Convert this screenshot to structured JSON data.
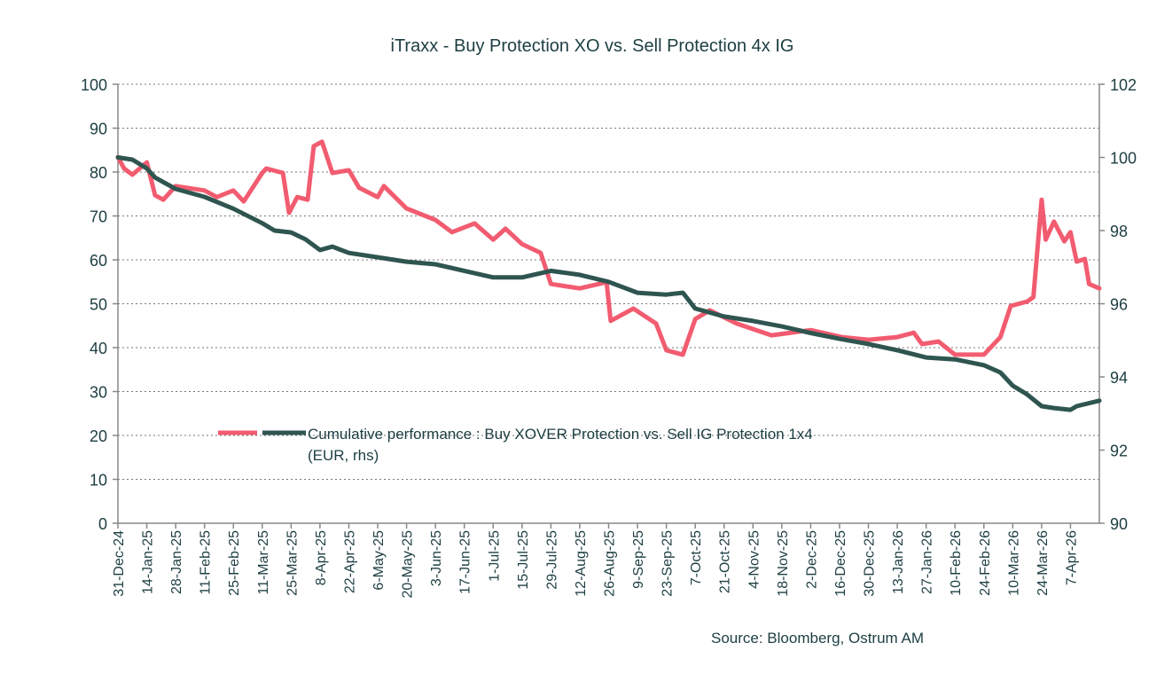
{
  "chart_data": {
    "type": "line",
    "title": "iTraxx  - Buy Protection XO vs. Sell Protection 4x IG",
    "source": "Source: Bloomberg, Ostrum AM",
    "x_range": [
      "2024-12-31",
      "2026-04-21"
    ],
    "x_tick_labels": [
      "31-Dec-24",
      "14-Jan-25",
      "28-Jan-25",
      "11-Feb-25",
      "25-Feb-25",
      "11-Mar-25",
      "25-Mar-25",
      "8-Apr-25",
      "22-Apr-25",
      "6-May-25",
      "20-May-25",
      "3-Jun-25",
      "17-Jun-25",
      "1-Jul-25",
      "15-Jul-25",
      "29-Jul-25",
      "12-Aug-25",
      "26-Aug-25",
      "9-Sep-25",
      "23-Sep-25",
      "7-Oct-25",
      "21-Oct-25",
      "4-Nov-25",
      "18-Nov-25",
      "2-Dec-25",
      "16-Dec-25",
      "30-Dec-25",
      "13-Jan-26",
      "27-Jan-26",
      "10-Feb-26",
      "24-Feb-26",
      "10-Mar-26",
      "24-Mar-26",
      "7-Apr-26"
    ],
    "y_left": {
      "range": [
        0,
        100
      ],
      "ticks": [
        "0",
        "10",
        "20",
        "30",
        "40",
        "50",
        "60",
        "70",
        "80",
        "90",
        "100"
      ]
    },
    "y_right": {
      "range": [
        90,
        102
      ],
      "ticks": [
        "90",
        "92",
        "94",
        "96",
        "98",
        "100",
        "102"
      ]
    },
    "grid": "horizontal dotted",
    "legend_placement": "lower-center",
    "legend_text_line1": "Cumulative performance : Buy XOVER Protection vs. Sell IG Protection  1x4",
    "legend_text_line2": "(EUR, rhs)",
    "series": [
      {
        "axis": "left",
        "color": "#f25c70",
        "x": [
          "2024-12-31",
          "2025-01-03",
          "2025-01-07",
          "2025-01-14",
          "2025-01-18",
          "2025-01-22",
          "2025-01-28",
          "2025-02-11",
          "2025-02-17",
          "2025-02-25",
          "2025-03-02",
          "2025-03-11",
          "2025-03-13",
          "2025-03-21",
          "2025-03-24",
          "2025-03-28",
          "2025-04-02",
          "2025-04-05",
          "2025-04-09",
          "2025-04-14",
          "2025-04-22",
          "2025-04-27",
          "2025-05-06",
          "2025-05-09",
          "2025-05-20",
          "2025-06-03",
          "2025-06-11",
          "2025-06-22",
          "2025-07-01",
          "2025-07-07",
          "2025-07-15",
          "2025-07-24",
          "2025-07-29",
          "2025-08-12",
          "2025-08-25",
          "2025-08-27",
          "2025-09-07",
          "2025-09-18",
          "2025-09-23",
          "2025-10-01",
          "2025-10-07",
          "2025-10-14",
          "2025-10-27",
          "2025-11-13",
          "2025-12-02",
          "2025-12-17",
          "2025-12-30",
          "2026-01-13",
          "2026-01-21",
          "2026-01-25",
          "2026-02-02",
          "2026-02-10",
          "2026-02-24",
          "2026-03-04",
          "2026-03-09",
          "2026-03-17",
          "2026-03-20",
          "2026-03-24",
          "2026-03-26",
          "2026-03-30",
          "2026-04-04",
          "2026-04-07",
          "2026-04-10",
          "2026-04-14",
          "2026-04-16",
          "2026-04-21"
        ],
        "values": [
          83.4,
          80.8,
          79.4,
          82.2,
          74.7,
          73.7,
          76.8,
          75.8,
          74.3,
          75.8,
          73.3,
          79.8,
          80.8,
          79.8,
          70.7,
          74.3,
          73.7,
          85.9,
          86.9,
          79.8,
          80.4,
          76.4,
          74.3,
          76.8,
          71.7,
          69.1,
          66.3,
          68.3,
          64.6,
          67.1,
          63.6,
          61.6,
          54.5,
          53.5,
          54.9,
          46.1,
          48.9,
          45.5,
          39.4,
          38.4,
          46.5,
          48.5,
          45.5,
          42.8,
          44.0,
          42.4,
          41.8,
          42.4,
          43.4,
          40.8,
          41.4,
          38.4,
          38.4,
          42.4,
          49.5,
          50.5,
          51.5,
          73.7,
          64.6,
          68.7,
          64.2,
          66.3,
          59.6,
          60.2,
          54.5,
          53.5
        ]
      },
      {
        "name": "Cumulative performance : Buy XOVER Protection vs. Sell IG Protection  1x4 (EUR, rhs)",
        "axis": "right",
        "color": "#2f5550",
        "x": [
          "2024-12-31",
          "2025-01-07",
          "2025-01-14",
          "2025-01-18",
          "2025-01-28",
          "2025-02-11",
          "2025-02-25",
          "2025-03-11",
          "2025-03-17",
          "2025-03-25",
          "2025-04-01",
          "2025-04-08",
          "2025-04-14",
          "2025-04-22",
          "2025-05-06",
          "2025-05-20",
          "2025-06-03",
          "2025-06-17",
          "2025-07-01",
          "2025-07-15",
          "2025-07-29",
          "2025-08-12",
          "2025-08-26",
          "2025-09-09",
          "2025-09-23",
          "2025-10-01",
          "2025-10-07",
          "2025-10-21",
          "2025-11-04",
          "2025-11-18",
          "2025-12-02",
          "2025-12-16",
          "2025-12-30",
          "2026-01-13",
          "2026-01-27",
          "2026-02-10",
          "2026-02-24",
          "2026-03-04",
          "2026-03-10",
          "2026-03-17",
          "2026-03-24",
          "2026-03-30",
          "2026-04-07",
          "2026-04-10",
          "2026-04-21"
        ],
        "values": [
          100.0,
          99.94,
          99.7,
          99.45,
          99.14,
          98.92,
          98.6,
          98.2,
          98.0,
          97.95,
          97.76,
          97.47,
          97.56,
          97.39,
          97.27,
          97.15,
          97.08,
          96.9,
          96.72,
          96.72,
          96.9,
          96.79,
          96.6,
          96.3,
          96.25,
          96.3,
          95.87,
          95.65,
          95.53,
          95.38,
          95.2,
          95.04,
          94.9,
          94.73,
          94.53,
          94.48,
          94.32,
          94.12,
          93.76,
          93.52,
          93.2,
          93.15,
          93.1,
          93.2,
          93.35
        ]
      }
    ]
  }
}
